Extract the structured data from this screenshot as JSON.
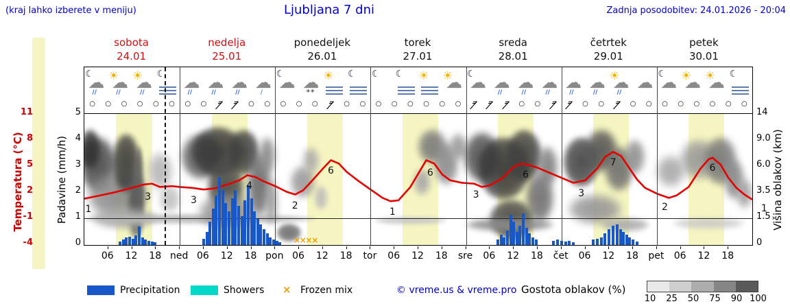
{
  "header": {
    "hint": "(kraj lahko izberete v meniju)",
    "title": "Ljubljana 7 dni",
    "updated": "Zadnja posodobitev: 24.01.2026 - 20:04"
  },
  "axes": {
    "temp_label": "Temperatura (°C)",
    "temp_ticks": [
      "11",
      "8",
      "5",
      "2",
      "-1",
      "-4"
    ],
    "precip_label": "Padavine (mm/h)",
    "precip_ticks": [
      "5",
      "4",
      "3",
      "2",
      "1",
      "0"
    ],
    "cloud_label": "Višina oblakov (km)",
    "cloud_ticks": [
      "14",
      "9.0",
      "6.0",
      "3.5",
      "1.5",
      "0"
    ]
  },
  "days": [
    {
      "name": "sobota",
      "date": "24.01",
      "weekend": true
    },
    {
      "name": "nedelja",
      "date": "25.01",
      "weekend": true
    },
    {
      "name": "ponedeljek",
      "date": "26.01",
      "weekend": false
    },
    {
      "name": "torek",
      "date": "27.01",
      "weekend": false
    },
    {
      "name": "sreda",
      "date": "28.01",
      "weekend": false
    },
    {
      "name": "četrtek",
      "date": "29.01",
      "weekend": false
    },
    {
      "name": "petek",
      "date": "30.01",
      "weekend": false
    }
  ],
  "time_labels": [
    {
      "h": 6,
      "t": "06"
    },
    {
      "h": 12,
      "t": "12"
    },
    {
      "h": 18,
      "t": "18"
    },
    {
      "h": 24,
      "t": "ned"
    },
    {
      "h": 30,
      "t": "06"
    },
    {
      "h": 36,
      "t": "12"
    },
    {
      "h": 42,
      "t": "18"
    },
    {
      "h": 48,
      "t": "pon"
    },
    {
      "h": 54,
      "t": "06"
    },
    {
      "h": 60,
      "t": "12"
    },
    {
      "h": 66,
      "t": "18"
    },
    {
      "h": 72,
      "t": "tor"
    },
    {
      "h": 78,
      "t": "06"
    },
    {
      "h": 84,
      "t": "12"
    },
    {
      "h": 90,
      "t": "18"
    },
    {
      "h": 96,
      "t": "sre"
    },
    {
      "h": 102,
      "t": "06"
    },
    {
      "h": 108,
      "t": "12"
    },
    {
      "h": 114,
      "t": "18"
    },
    {
      "h": 120,
      "t": "čet"
    },
    {
      "h": 126,
      "t": "06"
    },
    {
      "h": 132,
      "t": "12"
    },
    {
      "h": 138,
      "t": "18"
    },
    {
      "h": 144,
      "t": "pet"
    },
    {
      "h": 150,
      "t": "06"
    },
    {
      "h": 156,
      "t": "12"
    },
    {
      "h": 162,
      "t": "18"
    }
  ],
  "legend": {
    "precipitation": "Precipitation",
    "showers": "Showers",
    "frozen": "Frozen mix",
    "frozen_symbol": "×",
    "credit": "© vreme.us & vreme.pro",
    "cloud_density": "Gostota oblakov (%)",
    "scale_ticks": [
      "10",
      "25",
      "50",
      "75",
      "90",
      "100"
    ],
    "scale_colors": [
      "#e9e9e9",
      "#cfcfcf",
      "#adadad",
      "#868686",
      "#5a5a5a"
    ]
  },
  "chart_data": {
    "type": "meteogram",
    "x_unit": "hours_from_saturday_00h",
    "x_range": [
      0,
      168
    ],
    "precip_axis_range_mmh": [
      0,
      5
    ],
    "temp_axis_range_c": [
      -4,
      11
    ],
    "cloud_axis_ticks_km": [
      14,
      9.0,
      6.0,
      3.5,
      1.5,
      0
    ],
    "now_hour": 20.1,
    "daylight": [
      [
        8,
        17
      ],
      [
        32,
        41
      ],
      [
        56,
        65
      ],
      [
        80,
        89
      ],
      [
        104,
        113
      ],
      [
        128,
        137
      ],
      [
        152,
        161
      ]
    ],
    "temperature": [
      [
        0,
        1.2
      ],
      [
        4,
        1.6
      ],
      [
        8,
        2.0
      ],
      [
        12,
        2.5
      ],
      [
        15,
        2.9
      ],
      [
        17,
        3.0
      ],
      [
        19,
        2.6
      ],
      [
        22,
        2.7
      ],
      [
        24,
        2.6
      ],
      [
        27,
        2.5
      ],
      [
        30,
        2.3
      ],
      [
        33,
        2.45
      ],
      [
        36,
        2.9
      ],
      [
        39,
        3.4
      ],
      [
        41,
        4.0
      ],
      [
        43,
        3.8
      ],
      [
        45,
        3.3
      ],
      [
        48,
        2.7
      ],
      [
        51,
        2.0
      ],
      [
        53,
        1.7
      ],
      [
        55,
        2.2
      ],
      [
        57,
        3.2
      ],
      [
        60,
        4.8
      ],
      [
        62,
        5.8
      ],
      [
        64,
        5.4
      ],
      [
        66,
        4.4
      ],
      [
        69,
        3.3
      ],
      [
        72,
        2.3
      ],
      [
        75,
        1.3
      ],
      [
        77,
        0.9
      ],
      [
        79,
        1.0
      ],
      [
        82,
        2.6
      ],
      [
        84,
        4.2
      ],
      [
        86,
        5.8
      ],
      [
        88,
        5.4
      ],
      [
        90,
        4.1
      ],
      [
        92,
        3.4
      ],
      [
        95,
        3.1
      ],
      [
        98,
        3.0
      ],
      [
        100,
        2.6
      ],
      [
        102,
        2.8
      ],
      [
        105,
        3.6
      ],
      [
        108,
        5.0
      ],
      [
        110,
        5.4
      ],
      [
        112,
        5.2
      ],
      [
        114,
        4.9
      ],
      [
        117,
        4.3
      ],
      [
        120,
        3.7
      ],
      [
        123,
        3.1
      ],
      [
        126,
        3.4
      ],
      [
        129,
        4.8
      ],
      [
        131,
        6.2
      ],
      [
        133,
        6.8
      ],
      [
        135,
        6.3
      ],
      [
        137,
        4.9
      ],
      [
        139,
        3.5
      ],
      [
        141,
        2.5
      ],
      [
        144,
        1.8
      ],
      [
        147,
        1.3
      ],
      [
        149,
        1.6
      ],
      [
        152,
        2.6
      ],
      [
        155,
        4.8
      ],
      [
        157,
        5.9
      ],
      [
        158,
        6.1
      ],
      [
        160,
        5.3
      ],
      [
        162,
        3.7
      ],
      [
        164,
        2.5
      ],
      [
        166,
        1.7
      ],
      [
        168,
        1.1
      ]
    ],
    "temp_labels": [
      [
        1,
        1.2,
        "1"
      ],
      [
        16,
        2.7,
        "3"
      ],
      [
        27.5,
        2.3,
        "3"
      ],
      [
        41.5,
        4.0,
        "4"
      ],
      [
        53,
        1.6,
        "2"
      ],
      [
        62,
        5.8,
        "6"
      ],
      [
        77.5,
        0.9,
        "1"
      ],
      [
        87,
        5.6,
        "6"
      ],
      [
        98.5,
        2.9,
        "3"
      ],
      [
        111,
        5.3,
        "6"
      ],
      [
        125,
        3.1,
        "3"
      ],
      [
        133,
        6.8,
        "7"
      ],
      [
        146,
        1.4,
        "2"
      ],
      [
        158,
        6.1,
        "6"
      ],
      [
        171,
        1.3,
        "1"
      ]
    ],
    "precipitation": [
      [
        9,
        0.12
      ],
      [
        9.8,
        0.2
      ],
      [
        10.6,
        0.28
      ],
      [
        11.4,
        0.32
      ],
      [
        12.2,
        0.25
      ],
      [
        13,
        0.38
      ],
      [
        13.8,
        0.72
      ],
      [
        14.6,
        0.3
      ],
      [
        15.4,
        0.22
      ],
      [
        16.2,
        0.15
      ],
      [
        17,
        0.12
      ],
      [
        17.8,
        0.1
      ],
      [
        30,
        0.25
      ],
      [
        30.8,
        0.5
      ],
      [
        31.6,
        0.9
      ],
      [
        32.4,
        1.4
      ],
      [
        33.2,
        1.9
      ],
      [
        34,
        2.6
      ],
      [
        34.8,
        2.1
      ],
      [
        35.6,
        1.6
      ],
      [
        36.4,
        1.3
      ],
      [
        37.2,
        1.8
      ],
      [
        38,
        2.1
      ],
      [
        38.8,
        1.5
      ],
      [
        39.6,
        1.1
      ],
      [
        40.4,
        1.7
      ],
      [
        41.2,
        2.3
      ],
      [
        42,
        1.8
      ],
      [
        42.8,
        1.3
      ],
      [
        43.6,
        1.0
      ],
      [
        44.4,
        0.8
      ],
      [
        45.2,
        0.6
      ],
      [
        46,
        0.45
      ],
      [
        46.8,
        0.3
      ],
      [
        47.6,
        0.2
      ],
      [
        48.4,
        0.15
      ],
      [
        49.2,
        0.1
      ],
      [
        104,
        0.2
      ],
      [
        104.8,
        0.4
      ],
      [
        105.6,
        0.3
      ],
      [
        106.4,
        0.55
      ],
      [
        107.2,
        1.15
      ],
      [
        108,
        0.9
      ],
      [
        108.8,
        0.5
      ],
      [
        109.6,
        0.75
      ],
      [
        110.4,
        1.2
      ],
      [
        111.2,
        0.65
      ],
      [
        112,
        0.45
      ],
      [
        112.8,
        0.3
      ],
      [
        113.6,
        0.2
      ],
      [
        118,
        0.15
      ],
      [
        119,
        0.2
      ],
      [
        120,
        0.15
      ],
      [
        121,
        0.12
      ],
      [
        122,
        0.15
      ],
      [
        123,
        0.1
      ],
      [
        128,
        0.2
      ],
      [
        129,
        0.25
      ],
      [
        130,
        0.3
      ],
      [
        131,
        0.45
      ],
      [
        132,
        0.6
      ],
      [
        133,
        0.75
      ],
      [
        134,
        0.8
      ],
      [
        134.8,
        0.6
      ],
      [
        135.6,
        0.5
      ],
      [
        136.4,
        0.4
      ],
      [
        137.2,
        0.3
      ],
      [
        138,
        0.2
      ],
      [
        139,
        0.12
      ]
    ],
    "frozen_mix": [
      53.5,
      55,
      56.5,
      58
    ],
    "wind_barbs": [
      34,
      38,
      52,
      63,
      88,
      99,
      103,
      107,
      117,
      123,
      135
    ],
    "icons": [
      {
        "h": 3,
        "g": [
          "moon",
          "cloud",
          "rain"
        ]
      },
      {
        "h": 9,
        "g": [
          "sun",
          "cloud",
          "rain"
        ]
      },
      {
        "h": 15,
        "g": [
          "sun",
          "cloud",
          "rain"
        ]
      },
      {
        "h": 21,
        "g": [
          "moon",
          "fog"
        ]
      },
      {
        "h": 27,
        "g": [
          "cloud",
          "rain"
        ]
      },
      {
        "h": 33,
        "g": [
          "cloud",
          "rain"
        ]
      },
      {
        "h": 39,
        "g": [
          "cloud",
          "rain"
        ]
      },
      {
        "h": 45,
        "g": [
          "cloud",
          "drizzle"
        ]
      },
      {
        "h": 51,
        "g": [
          "moon",
          "cloud"
        ]
      },
      {
        "h": 57,
        "g": [
          "cloud",
          "snow"
        ]
      },
      {
        "h": 63,
        "g": [
          "sun",
          "fog"
        ]
      },
      {
        "h": 69,
        "g": [
          "moon",
          "fog"
        ]
      },
      {
        "h": 75,
        "g": [
          "moon"
        ]
      },
      {
        "h": 81,
        "g": [
          "moon",
          "fog"
        ]
      },
      {
        "h": 87,
        "g": [
          "sun",
          "fog"
        ]
      },
      {
        "h": 93,
        "g": [
          "sun",
          "cloud"
        ]
      },
      {
        "h": 99,
        "g": [
          "moon",
          "cloud"
        ]
      },
      {
        "h": 105,
        "g": [
          "cloud",
          "rain"
        ]
      },
      {
        "h": 111,
        "g": [
          "cloud",
          "rain"
        ]
      },
      {
        "h": 117,
        "g": [
          "cloud",
          "rain"
        ]
      },
      {
        "h": 123,
        "g": [
          "cloud",
          "rain"
        ]
      },
      {
        "h": 129,
        "g": [
          "cloud",
          "rain"
        ]
      },
      {
        "h": 135,
        "g": [
          "sun",
          "cloud",
          "rain"
        ]
      },
      {
        "h": 141,
        "g": [
          "cloud"
        ]
      },
      {
        "h": 147,
        "g": [
          "moon",
          "cloud"
        ]
      },
      {
        "h": 153,
        "g": [
          "sun",
          "cloud"
        ]
      },
      {
        "h": 159,
        "g": [
          "sun",
          "cloud"
        ]
      },
      {
        "h": 165,
        "g": [
          "moon",
          "fog"
        ]
      }
    ],
    "cloud_blobs": [
      {
        "h": -1,
        "w": 9,
        "y": 18,
        "hp": 42,
        "c": "#4a4a4a",
        "b": 5
      },
      {
        "h": -1,
        "w": 5,
        "y": 12,
        "hp": 30,
        "c": "#303030",
        "b": 4
      },
      {
        "h": 1,
        "w": 15,
        "y": 45,
        "hp": 35,
        "c": "#8a8a8a",
        "b": 6
      },
      {
        "h": 7,
        "w": 7,
        "y": 15,
        "hp": 45,
        "c": "#3c3c3c",
        "b": 4
      },
      {
        "h": 11,
        "w": 3.5,
        "y": 45,
        "hp": 50,
        "c": "#555555",
        "b": 4
      },
      {
        "h": 12.5,
        "w": 2.5,
        "y": 25,
        "hp": 68,
        "c": "#606060",
        "b": 3
      },
      {
        "h": 2,
        "w": 16,
        "y": 72,
        "hp": 16,
        "c": "#a8a8a8",
        "b": 5
      },
      {
        "h": 16,
        "w": 6,
        "y": 30,
        "hp": 28,
        "c": "#b5b5b5",
        "b": 6
      },
      {
        "h": 19,
        "w": 5,
        "y": 55,
        "hp": 20,
        "c": "#c0c0c0",
        "b": 5
      },
      {
        "h": 0,
        "w": 58,
        "y": 77,
        "hp": 7,
        "c": "#b8b8b8",
        "b": 3
      },
      {
        "h": 24.5,
        "w": 10,
        "y": 15,
        "hp": 35,
        "c": "#5a5a5a",
        "b": 5
      },
      {
        "h": 27,
        "w": 13,
        "y": 10,
        "hp": 38,
        "c": "#383838",
        "b": 4
      },
      {
        "h": 31,
        "w": 9,
        "y": 35,
        "hp": 42,
        "c": "#4a4a4a",
        "b": 4
      },
      {
        "h": 36,
        "w": 8,
        "y": 12,
        "hp": 35,
        "c": "#404040",
        "b": 4
      },
      {
        "h": 29,
        "w": 14,
        "y": 62,
        "hp": 26,
        "c": "#909090",
        "b": 6
      },
      {
        "h": 41,
        "w": 6,
        "y": 30,
        "hp": 48,
        "c": "#6a6a6a",
        "b": 5
      },
      {
        "h": 44,
        "w": 4,
        "y": 18,
        "hp": 28,
        "c": "#8a8a8a",
        "b": 5
      },
      {
        "h": 45.5,
        "w": 3,
        "y": 50,
        "hp": 35,
        "c": "#9a9a9a",
        "b": 5
      },
      {
        "h": 48.5,
        "w": 6,
        "y": 84,
        "hp": 14,
        "c": "#6f6f6f",
        "b": 3
      },
      {
        "h": 52,
        "w": 6,
        "y": 40,
        "hp": 24,
        "c": "#9a9a9a",
        "b": 5
      },
      {
        "h": 55,
        "w": 4,
        "y": 26,
        "hp": 20,
        "c": "#ababab",
        "b": 5
      },
      {
        "h": 58,
        "w": 3,
        "y": 55,
        "hp": 18,
        "c": "#bbbbbb",
        "b": 4
      },
      {
        "h": 73,
        "w": 18,
        "y": 79,
        "hp": 6,
        "c": "#c6c6c6",
        "b": 3
      },
      {
        "h": 84,
        "w": 7,
        "y": 12,
        "hp": 26,
        "c": "#7a7a7a",
        "b": 5
      },
      {
        "h": 88,
        "w": 6,
        "y": 22,
        "hp": 32,
        "c": "#8a8a8a",
        "b": 5
      },
      {
        "h": 83,
        "w": 4,
        "y": 42,
        "hp": 20,
        "c": "#a5a5a5",
        "b": 5
      },
      {
        "h": 92,
        "w": 4,
        "y": 15,
        "hp": 20,
        "c": "#999999",
        "b": 5
      },
      {
        "h": 95.5,
        "w": 9,
        "y": 14,
        "hp": 38,
        "c": "#4f4f4f",
        "b": 5
      },
      {
        "h": 99,
        "w": 13,
        "y": 18,
        "hp": 48,
        "c": "#373737",
        "b": 4
      },
      {
        "h": 106,
        "w": 9,
        "y": 12,
        "hp": 40,
        "c": "#404040",
        "b": 4
      },
      {
        "h": 102,
        "w": 11,
        "y": 66,
        "hp": 30,
        "c": "#4a4a4a",
        "b": 4
      },
      {
        "h": 111,
        "w": 7,
        "y": 45,
        "hp": 38,
        "c": "#6e6e6e",
        "b": 5
      },
      {
        "h": 114,
        "w": 5,
        "y": 25,
        "hp": 30,
        "c": "#808080",
        "b": 5
      },
      {
        "h": 96,
        "w": 22,
        "y": 80,
        "hp": 10,
        "c": "#8a8a8a",
        "b": 4
      },
      {
        "h": 120.5,
        "w": 9,
        "y": 18,
        "hp": 38,
        "c": "#454545",
        "b": 4
      },
      {
        "h": 126,
        "w": 8,
        "y": 12,
        "hp": 32,
        "c": "#555555",
        "b": 5
      },
      {
        "h": 131,
        "w": 7,
        "y": 25,
        "hp": 34,
        "c": "#6e6e6e",
        "b": 5
      },
      {
        "h": 122,
        "w": 13,
        "y": 62,
        "hp": 22,
        "c": "#969696",
        "b": 6
      },
      {
        "h": 136,
        "w": 5,
        "y": 20,
        "hp": 26,
        "c": "#909090",
        "b": 5
      },
      {
        "h": 130,
        "w": 12,
        "y": 80,
        "hp": 10,
        "c": "#aaaaaa",
        "b": 4
      },
      {
        "h": 144,
        "w": 7,
        "y": 32,
        "hp": 24,
        "c": "#a8a8a8",
        "b": 6
      },
      {
        "h": 150,
        "w": 9,
        "y": 20,
        "hp": 30,
        "c": "#999999",
        "b": 6
      },
      {
        "h": 156,
        "w": 8,
        "y": 18,
        "hp": 36,
        "c": "#777777",
        "b": 5
      },
      {
        "h": 161,
        "w": 5,
        "y": 35,
        "hp": 30,
        "c": "#888888",
        "b": 5
      },
      {
        "h": 148,
        "w": 18,
        "y": 80,
        "hp": 8,
        "c": "#c8c8c8",
        "b": 4
      },
      {
        "h": 164,
        "w": 4,
        "y": 50,
        "hp": 22,
        "c": "#a0a0a0",
        "b": 5
      }
    ],
    "colors": {
      "temp_line": "#e60000",
      "precipitation": "#1857c8",
      "showers": "#00d8c8",
      "frozen_mix": "#f0a000",
      "day_band": "#f6f6c2",
      "blue_text": "#0000cc",
      "red_text": "#cc0000"
    }
  }
}
